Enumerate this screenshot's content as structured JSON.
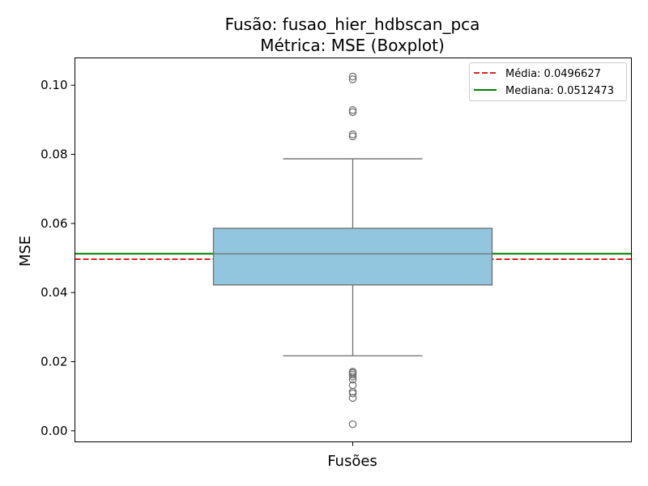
{
  "chart_data": {
    "type": "box",
    "title": "Fusão: fusao_hier_hdbscan_pca",
    "subtitle": "Métrica: MSE (Boxplot)",
    "xlabel": "Fusões",
    "ylabel": "MSE",
    "ylim": [
      -0.0032,
      0.1079
    ],
    "yticks": [
      0.0,
      0.02,
      0.04,
      0.06,
      0.08,
      0.1
    ],
    "ytick_labels": [
      "0.00",
      "0.02",
      "0.04",
      "0.06",
      "0.08",
      "0.10"
    ],
    "grid": false,
    "legend_position": "top-right",
    "box": {
      "whisker_low": 0.0217,
      "q1": 0.0422,
      "median": 0.0512,
      "q3": 0.0586,
      "whisker_high": 0.0787,
      "fill_color": "#92C6DE",
      "edge_color": "#6e6e6e"
    },
    "outliers": [
      0.0019,
      0.0095,
      0.0108,
      0.0113,
      0.0132,
      0.0148,
      0.0157,
      0.0163,
      0.0168,
      0.0171,
      0.0852,
      0.0858,
      0.0922,
      0.0928,
      0.1017,
      0.1025
    ],
    "reference_lines": [
      {
        "label": "Média: 0.0496627",
        "value": 0.0496627,
        "color": "#d62728",
        "style": "dashed"
      },
      {
        "label": "Mediana: 0.0512473",
        "value": 0.0512473,
        "color": "#008000",
        "style": "solid"
      }
    ]
  }
}
